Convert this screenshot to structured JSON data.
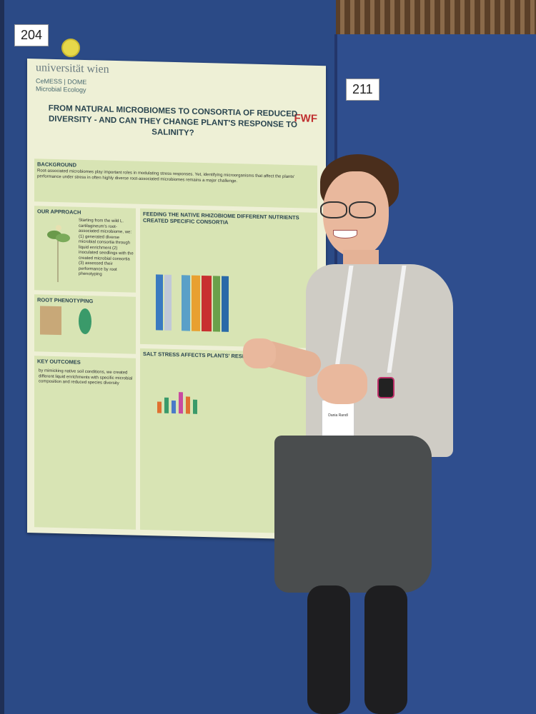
{
  "tags": {
    "left": "204",
    "right": "211"
  },
  "poster": {
    "uni_logo": "universität wien",
    "dept": "CeMESS | DOME",
    "dept2": "Microbial Ecology",
    "funder": "FWF",
    "title": "FROM NATURAL MICROBIOMES TO CONSORTIA OF REDUCED DIVERSITY - AND CAN THEY CHANGE PLANT'S RESPONSE TO SALINITY?",
    "sections": {
      "background": "BACKGROUND",
      "approach": "OUR APPROACH",
      "feeding": "FEEDING THE NATIVE RHIZOBIOME DIFFERENT NUTRIENTS CREATED SPECIFIC CONSORTIA",
      "root": "ROOT PHENOTYPING",
      "salt": "SALT STRESS AFFECTS PLANTS' RESPONSE TO ENR...",
      "key": "KEY OUTCOMES"
    },
    "approach_text": "Starting from the wild L. cartilagineum's root-associated microbiome, we: (1) generated diverse microbial consortia through liquid enrichment (2) inoculated seedlings with the created microbial consortia (3) assessed their performance by root phenotyping",
    "background_text": "Root-associated microbiomes play important roles in modulating stress responses. Yet, identifying microorganisms that affect the plants' performance under stress in often highly diverse root-associated microbiomes remains a major challenge.",
    "key_text": "by mimicking native soil conditions, we created different liquid enrichments with specific microbial composition and reduced species diversity",
    "nameplate": "Dania Randl"
  }
}
